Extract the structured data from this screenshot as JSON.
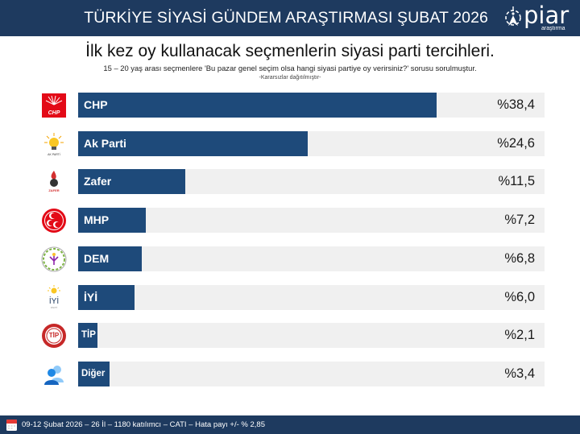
{
  "header": {
    "title": "TÜRKİYE SİYASİ GÜNDEM ARAŞTIRMASI ŞUBAT 2026",
    "logo_word": "piar",
    "logo_sub": "araştırma",
    "background": "#1e3a5f"
  },
  "headline": "İlk kez oy kullanacak seçmenlerin siyasi parti tercihleri.",
  "subline": "15 – 20 yaş arası seçmenlere 'Bu pazar genel seçim olsa hangi siyasi partiye oy verirsiniz?' sorusu sorulmuştur.",
  "note": "-Kararsızlar dağıtılmıştır-",
  "rows": [
    {
      "label": "CHP",
      "value_text": "%38,4",
      "logo": "chp-logo"
    },
    {
      "label": "Ak Parti",
      "value_text": "%24,6",
      "logo": "akparti-logo"
    },
    {
      "label": "Zafer",
      "value_text": "%11,5",
      "logo": "zafer-logo"
    },
    {
      "label": "MHP",
      "value_text": "%7,2",
      "logo": "mhp-logo"
    },
    {
      "label": "DEM",
      "value_text": "%6,8",
      "logo": "dem-logo"
    },
    {
      "label": "İYİ",
      "value_text": "%6,0",
      "logo": "iyi-logo"
    },
    {
      "label": "TİP",
      "value_text": "%2,1",
      "logo": "tip-logo"
    },
    {
      "label": "Diğer",
      "value_text": "%3,4",
      "logo": "other-people-icon"
    }
  ],
  "footer": {
    "text": "09-12 Şubat 2026 – 26 İl – 1180 katılımcı – CATI – Hata payı +/- % 2,85",
    "icon": "calendar-icon"
  },
  "colors": {
    "bar": "#1e4a7a",
    "track": "#f0f0f0",
    "header_footer": "#1e3a5f"
  },
  "chart_data": {
    "type": "bar",
    "orientation": "horizontal",
    "title": "İlk kez oy kullanacak seçmenlerin siyasi parti tercihleri.",
    "subtitle": "15 – 20 yaş arası seçmenlere 'Bu pazar genel seçim olsa hangi siyasi partiye oy verirsiniz?' sorusu sorulmuştur.",
    "annotation": "-Kararsızlar dağıtılmıştır-",
    "categories": [
      "CHP",
      "Ak Parti",
      "Zafer",
      "MHP",
      "DEM",
      "İYİ",
      "TİP",
      "Diğer"
    ],
    "values": [
      38.4,
      24.6,
      11.5,
      7.2,
      6.8,
      6.0,
      2.1,
      3.4
    ],
    "unit": "%",
    "xlabel": "",
    "ylabel": "",
    "xlim": [
      0,
      50
    ],
    "grid": false,
    "legend": "none",
    "source_note": "09-12 Şubat 2026 – 26 İl – 1180 katılımcı – CATI – Hata payı +/- % 2,85"
  }
}
